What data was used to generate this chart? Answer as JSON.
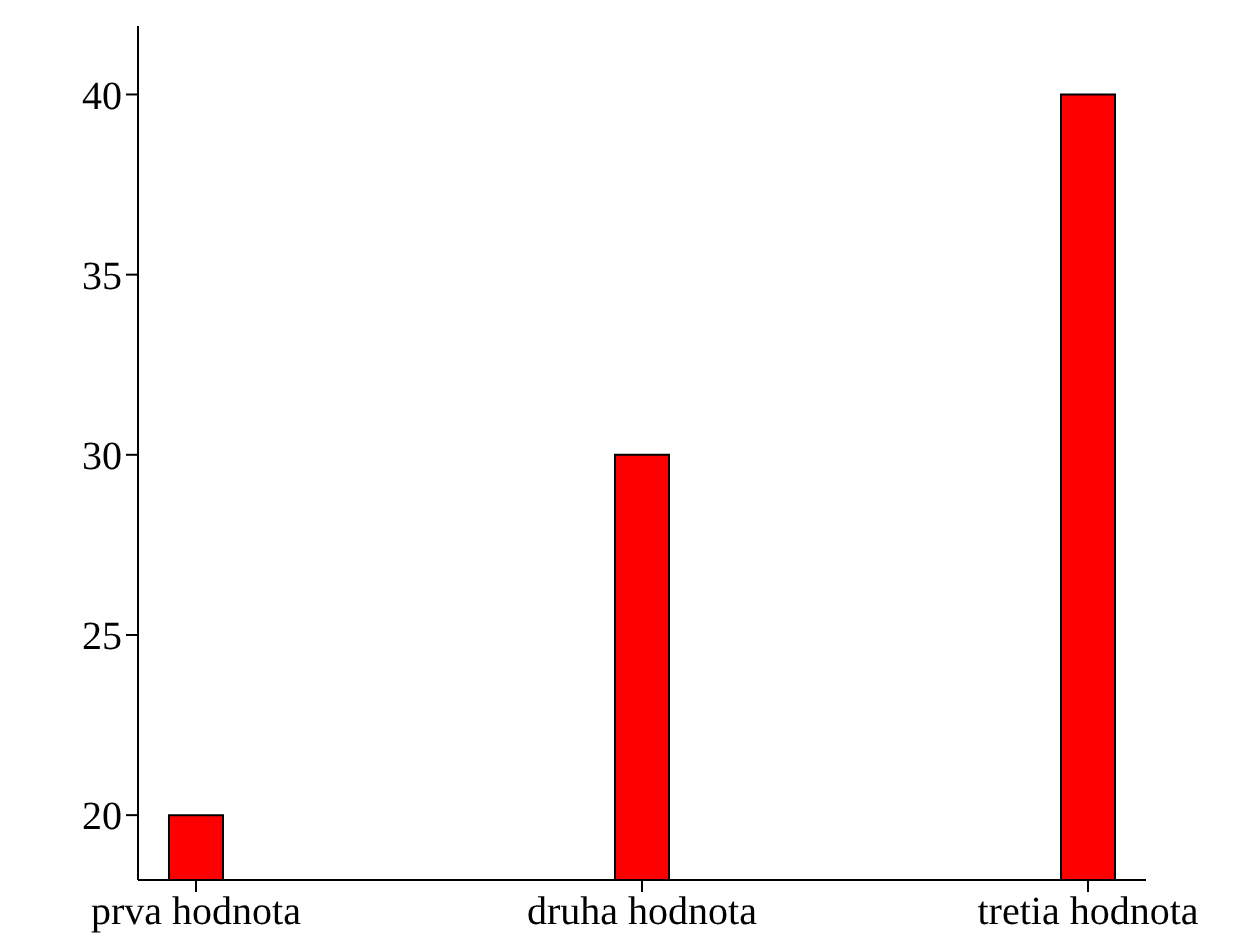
{
  "chart_data": {
    "type": "bar",
    "categories": [
      "prva hodnota",
      "druha hodnota",
      "tretia hodnota"
    ],
    "values": [
      20,
      30,
      40
    ],
    "color": "#ff0000",
    "ylim": [
      18.2,
      41.9
    ],
    "yticks": [
      20,
      25,
      30,
      35,
      40
    ]
  }
}
